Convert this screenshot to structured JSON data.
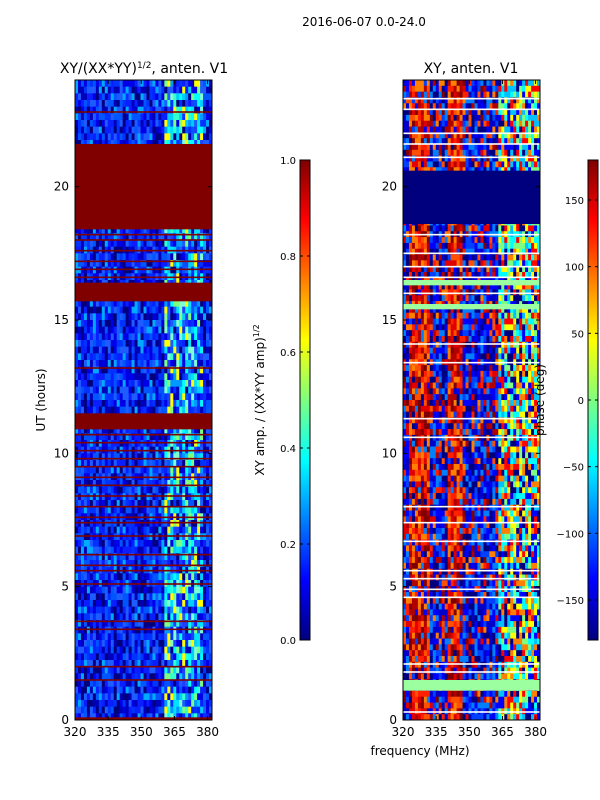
{
  "figure_title": "2016-06-07 0.0-24.0",
  "shared_xlabel": "frequency (MHz)",
  "colors": {
    "jet": [
      "#00007f",
      "#0000ff",
      "#007fff",
      "#00ffff",
      "#7fff7f",
      "#ffff00",
      "#ff7f00",
      "#ff0000",
      "#7f0000"
    ],
    "flag_red": "#800000",
    "flag_blue": "#00007f",
    "flag_mint": "#9cffa0"
  },
  "chart_data": [
    {
      "type": "heatmap",
      "title": "XY/(XX*YY)",
      "title_sup": "1/2",
      "title_suffix": ", anten. V1",
      "xlabel": "",
      "ylabel": "UT (hours)",
      "xlim": [
        320,
        382
      ],
      "ylim": [
        0,
        24
      ],
      "xticks": [
        "320",
        "335",
        "350",
        "365",
        "380"
      ],
      "xtick_values": [
        320,
        335,
        350,
        365,
        380
      ],
      "yticks": [
        "0",
        "5",
        "10",
        "15",
        "20"
      ],
      "ytick_values": [
        0,
        5,
        10,
        15,
        20
      ],
      "bright_band_mhz": [
        360,
        377
      ],
      "flagged_blocks_ut": [
        [
          18.4,
          21.6
        ],
        [
          15.7,
          16.4
        ],
        [
          10.9,
          11.5
        ],
        [
          0.0,
          0.1
        ]
      ],
      "flagged_lines_ut": [
        1.5,
        2.0,
        3.4,
        3.7,
        5.1,
        5.6,
        5.8,
        6.2,
        6.9,
        7.4,
        7.6,
        8.0,
        8.4,
        8.8,
        9.1,
        9.5,
        9.8,
        10.1,
        10.4,
        10.7,
        13.2,
        16.6,
        16.9,
        17.2,
        17.6,
        18.0,
        18.2,
        22.8
      ],
      "colorbar": {
        "label": "XY amp. / (XX*YY amp)",
        "label_sup": "1/2",
        "ticks": [
          "0.0",
          "0.2",
          "0.4",
          "0.6",
          "0.8",
          "1.0"
        ],
        "tick_values": [
          0.0,
          0.2,
          0.4,
          0.6,
          0.8,
          1.0
        ],
        "range": [
          0,
          1
        ]
      }
    },
    {
      "type": "heatmap",
      "title": "XY, anten. V1",
      "xlabel": "frequency (MHz)",
      "ylabel": "",
      "xlim": [
        320,
        382
      ],
      "ylim": [
        0,
        24
      ],
      "xticks": [
        "320",
        "335",
        "350",
        "365",
        "380"
      ],
      "xtick_values": [
        320,
        335,
        350,
        365,
        380
      ],
      "yticks": [
        "0",
        "5",
        "10",
        "15",
        "20"
      ],
      "ytick_values": [
        0,
        5,
        10,
        15,
        20
      ],
      "red_bands_mhz": [
        [
          322,
          332
        ],
        [
          339,
          346
        ]
      ],
      "flagged_blocks_ut": [
        [
          18.6,
          20.6
        ]
      ],
      "mint_blocks_ut": [
        [
          1.1,
          1.5
        ],
        [
          15.4,
          15.6
        ],
        [
          16.3,
          16.5
        ]
      ],
      "white_lines_ut": [
        0.3,
        1.8,
        2.1,
        4.6,
        4.9,
        5.3,
        5.6,
        6.7,
        7.4,
        8.0,
        10.6,
        11.3,
        13.4,
        14.1,
        16.0,
        16.6,
        17.0,
        17.5,
        18.2,
        21.1,
        21.6,
        22.0,
        22.9,
        23.3
      ],
      "colorbar": {
        "label": "phase (deg)",
        "ticks": [
          "−150",
          "−100",
          "−50",
          "0",
          "50",
          "100",
          "150"
        ],
        "tick_values": [
          -150,
          -100,
          -50,
          0,
          50,
          100,
          150
        ],
        "range": [
          -180,
          180
        ]
      }
    }
  ]
}
